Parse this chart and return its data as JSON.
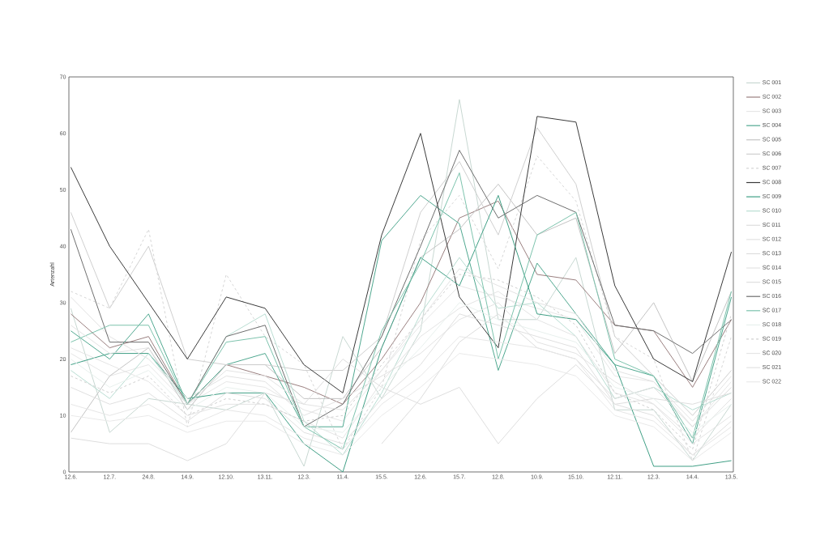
{
  "chart_data": {
    "type": "line",
    "ylabel": "Artenzahl",
    "categories": [
      "12.6.",
      "12.7.",
      "24.8.",
      "14.9.",
      "12.10.",
      "13.11.",
      "12.3.",
      "11.4.",
      "15.5.",
      "12.6.",
      "15.7.",
      "12.8.",
      "10.9.",
      "15.10.",
      "12.11.",
      "12.3.",
      "14.4.",
      "13.5."
    ],
    "ylim": [
      0,
      70
    ],
    "yticks": [
      0,
      10,
      20,
      30,
      40,
      50,
      60,
      70
    ],
    "legend": "right",
    "marker": "none",
    "grid": false,
    "series": [
      {
        "name": "SC 001",
        "color": "#c8d8d2",
        "values": [
          29,
          7,
          13,
          12,
          11,
          14,
          1,
          24,
          13,
          25,
          66,
          27,
          27,
          38,
          11,
          11,
          2,
          12
        ]
      },
      {
        "name": "SC 002",
        "color": "#9a7f7f",
        "values": [
          28,
          22,
          24,
          12,
          19,
          17,
          15,
          12,
          20,
          30,
          45,
          48,
          35,
          34,
          26,
          25,
          15,
          27
        ]
      },
      {
        "name": "SC 003",
        "color": "#e6e6e6",
        "values": [
          21,
          17,
          19,
          12,
          16,
          15,
          11,
          9,
          18,
          26,
          33,
          31,
          29,
          27,
          17,
          16,
          8,
          16
        ]
      },
      {
        "name": "SC 004",
        "color": "#4fa890",
        "values": [
          25,
          20,
          28,
          12,
          19,
          21,
          8,
          8,
          41,
          49,
          44,
          18,
          37,
          28,
          19,
          17,
          5,
          31
        ]
      },
      {
        "name": "SC 005",
        "color": "#c4c4c4",
        "values": [
          7,
          17,
          22,
          11,
          19,
          19,
          13,
          13,
          22,
          38,
          43,
          51,
          42,
          45,
          21,
          30,
          16,
          32
        ]
      },
      {
        "name": "SC 006",
        "color": "#cfcfcf",
        "values": [
          46,
          29,
          40,
          20,
          19,
          19,
          18,
          18,
          24,
          46,
          55,
          42,
          61,
          51,
          24,
          17,
          10,
          18
        ]
      },
      {
        "name": "SC 007",
        "color": "#d6d6d6",
        "line_style": "dashed",
        "values": [
          32,
          29,
          43,
          8,
          35,
          24,
          19,
          4,
          15,
          41,
          49,
          36,
          56,
          48,
          24,
          20,
          2,
          24
        ]
      },
      {
        "name": "SC 008",
        "color": "#3a3a3a",
        "values": [
          54,
          40,
          30,
          20,
          31,
          29,
          19,
          14,
          42,
          60,
          31,
          22,
          63,
          62,
          33,
          20,
          16,
          39
        ]
      },
      {
        "name": "SC 009",
        "color": "#3f9f85",
        "values": [
          19,
          21,
          21,
          13,
          14,
          14,
          5,
          0,
          22,
          38,
          33,
          49,
          28,
          27,
          19,
          1,
          1,
          2
        ]
      },
      {
        "name": "SC 010",
        "color": "#b9ddd2",
        "values": [
          18,
          13,
          21,
          12,
          24,
          28,
          9,
          3,
          14,
          28,
          38,
          29,
          30,
          24,
          13,
          15,
          11,
          14
        ]
      },
      {
        "name": "SC 011",
        "color": "#dedede",
        "values": [
          6,
          5,
          5,
          2,
          5,
          14,
          12,
          20,
          15,
          12,
          15,
          5,
          13,
          19,
          12,
          13,
          12,
          14
        ]
      },
      {
        "name": "SC 012",
        "color": "#e2e2e2",
        "values": [
          31,
          24,
          20,
          13,
          17,
          16,
          10,
          13,
          17,
          21,
          27,
          30,
          23,
          21,
          16,
          12,
          6,
          13
        ]
      },
      {
        "name": "SC 013",
        "color": "#dcdcdc",
        "values": [
          null,
          null,
          null,
          null,
          null,
          null,
          null,
          null,
          5,
          13,
          23,
          28,
          22,
          20,
          13,
          15,
          8,
          15
        ]
      },
      {
        "name": "SC 014",
        "color": "#e4e4e4",
        "values": [
          22,
          19,
          16,
          10,
          12,
          12,
          9,
          6,
          16,
          24,
          29,
          32,
          27,
          24,
          14,
          12,
          5,
          10
        ]
      },
      {
        "name": "SC 015",
        "color": "#e0e0e0",
        "values": [
          15,
          12,
          14,
          9,
          14,
          13,
          7,
          5,
          13,
          19,
          28,
          26,
          24,
          22,
          12,
          10,
          3,
          9
        ]
      },
      {
        "name": "SC 016",
        "color": "#6e6e6e",
        "values": [
          43,
          23,
          23,
          12,
          24,
          26,
          8,
          12,
          24,
          40,
          57,
          45,
          49,
          46,
          26,
          25,
          21,
          27
        ]
      },
      {
        "name": "SC 017",
        "color": "#7cc3ad",
        "values": [
          23,
          26,
          26,
          12,
          23,
          24,
          8,
          4,
          25,
          37,
          53,
          20,
          42,
          46,
          20,
          17,
          6,
          32
        ]
      },
      {
        "name": "SC 018",
        "color": "#e8f0ed",
        "values": [
          20,
          15,
          18,
          11,
          15,
          14,
          8,
          7,
          15,
          22,
          30,
          27,
          25,
          23,
          15,
          13,
          7,
          12
        ]
      },
      {
        "name": "SC 019",
        "color": "#d0d0d0",
        "line_style": "dashed",
        "values": [
          17,
          14,
          17,
          10,
          13,
          12,
          9,
          10,
          19,
          27,
          35,
          34,
          31,
          26,
          14,
          11,
          4,
          28
        ]
      },
      {
        "name": "SC 020",
        "color": "#e6e6e6",
        "values": [
          12,
          10,
          12,
          8,
          11,
          10,
          6,
          4,
          12,
          17,
          24,
          23,
          22,
          20,
          11,
          9,
          3,
          8
        ]
      },
      {
        "name": "SC 021",
        "color": "#e3e3e3",
        "values": [
          26,
          21,
          22,
          12,
          18,
          17,
          12,
          11,
          18,
          27,
          36,
          33,
          30,
          28,
          18,
          16,
          9,
          17
        ]
      },
      {
        "name": "SC 022",
        "color": "#e9e9e9",
        "values": [
          10,
          9,
          10,
          7,
          9,
          9,
          5,
          3,
          10,
          15,
          21,
          20,
          19,
          17,
          10,
          8,
          2,
          7
        ]
      }
    ]
  }
}
